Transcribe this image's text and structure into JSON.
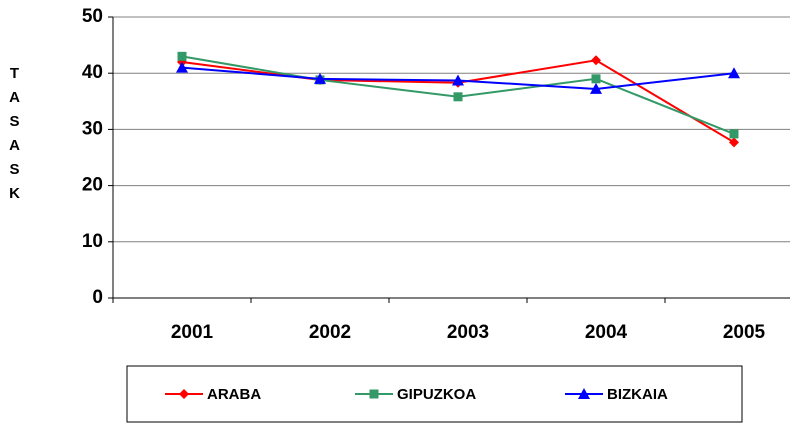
{
  "chart_data": {
    "type": "line",
    "y_label": "TASASK",
    "categories": [
      "2001",
      "2002",
      "2003",
      "2004",
      "2005"
    ],
    "series": [
      {
        "name": "ARABA",
        "color": "#ff0000",
        "values": [
          42,
          38.8,
          38.3,
          42.3,
          27.7
        ]
      },
      {
        "name": "GIPUZKOA",
        "color": "#339966",
        "values": [
          43,
          38.8,
          35.8,
          39,
          29.2
        ]
      },
      {
        "name": "BIZKAIA",
        "color": "#0000ff",
        "values": [
          41,
          39,
          38.7,
          37.2,
          40
        ]
      }
    ],
    "ylim": [
      0,
      50
    ],
    "yticks": [
      0,
      10,
      20,
      30,
      40,
      50
    ],
    "grid": true,
    "legend": "bottom"
  }
}
